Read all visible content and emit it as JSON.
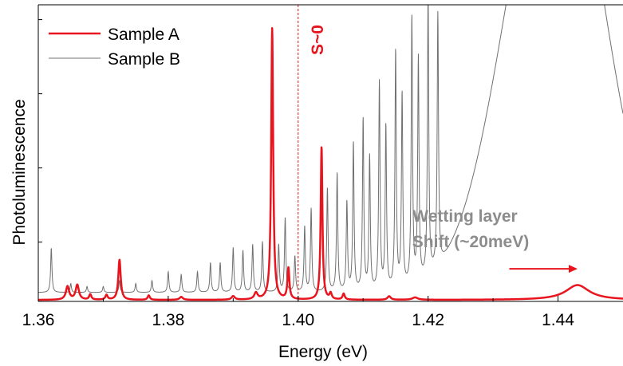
{
  "chart_data": {
    "type": "line",
    "xlabel": "Energy (eV)",
    "ylabel": "Photoluminescence",
    "xlim": [
      1.36,
      1.45
    ],
    "ylim": [
      0,
      1
    ],
    "x_ticks": [
      "1.36",
      "1.38",
      "1.40",
      "1.42",
      "1.44"
    ],
    "x_tick_values": [
      1.36,
      1.38,
      1.4,
      1.42,
      1.44
    ],
    "legend_position": "top-left",
    "colors": {
      "sample_a": "#e8141e",
      "sample_b": "#707070",
      "arrow": "#e8141e"
    },
    "series": [
      {
        "name": "Sample A",
        "color": "#e8141e",
        "baseline": 0.005,
        "peaks": [
          {
            "x": 1.3645,
            "y": 0.045,
            "w": 0.0003
          },
          {
            "x": 1.366,
            "y": 0.05,
            "w": 0.0003
          },
          {
            "x": 1.368,
            "y": 0.018,
            "w": 0.0002
          },
          {
            "x": 1.3705,
            "y": 0.016,
            "w": 0.0002
          },
          {
            "x": 1.3725,
            "y": 0.135,
            "w": 0.00022
          },
          {
            "x": 1.377,
            "y": 0.015,
            "w": 0.0002
          },
          {
            "x": 1.382,
            "y": 0.01,
            "w": 0.0003
          },
          {
            "x": 1.39,
            "y": 0.012,
            "w": 0.0003
          },
          {
            "x": 1.3935,
            "y": 0.022,
            "w": 0.0003
          },
          {
            "x": 1.396,
            "y": 0.915,
            "w": 0.00018
          },
          {
            "x": 1.3985,
            "y": 0.105,
            "w": 0.00018
          },
          {
            "x": 1.4036,
            "y": 0.515,
            "w": 0.00016
          },
          {
            "x": 1.405,
            "y": 0.02,
            "w": 0.0002
          },
          {
            "x": 1.407,
            "y": 0.02,
            "w": 0.0002
          },
          {
            "x": 1.414,
            "y": 0.012,
            "w": 0.0003
          },
          {
            "x": 1.418,
            "y": 0.008,
            "w": 0.0005
          },
          {
            "x": 1.443,
            "y": 0.05,
            "w": 0.0022
          }
        ]
      },
      {
        "name": "Sample B",
        "color": "#707070",
        "baseline": 0.03,
        "broad": [
          {
            "x": 1.4395,
            "y": 1.6,
            "w": 0.0075
          },
          {
            "x": 1.4425,
            "y": 0.06,
            "w": 0.003
          }
        ],
        "peaks": [
          {
            "x": 1.362,
            "y": 0.15,
            "w": 0.00012
          },
          {
            "x": 1.365,
            "y": 0.03,
            "w": 0.00012
          },
          {
            "x": 1.3675,
            "y": 0.02,
            "w": 0.00012
          },
          {
            "x": 1.37,
            "y": 0.02,
            "w": 0.00012
          },
          {
            "x": 1.3725,
            "y": 0.04,
            "w": 0.00012
          },
          {
            "x": 1.375,
            "y": 0.03,
            "w": 0.00012
          },
          {
            "x": 1.3775,
            "y": 0.04,
            "w": 0.00012
          },
          {
            "x": 1.38,
            "y": 0.07,
            "w": 0.00012
          },
          {
            "x": 1.382,
            "y": 0.06,
            "w": 0.00012
          },
          {
            "x": 1.3845,
            "y": 0.07,
            "w": 0.00012
          },
          {
            "x": 1.3865,
            "y": 0.1,
            "w": 0.00012
          },
          {
            "x": 1.388,
            "y": 0.1,
            "w": 0.00012
          },
          {
            "x": 1.39,
            "y": 0.15,
            "w": 0.00012
          },
          {
            "x": 1.3915,
            "y": 0.14,
            "w": 0.00012
          },
          {
            "x": 1.393,
            "y": 0.16,
            "w": 0.00012
          },
          {
            "x": 1.3945,
            "y": 0.17,
            "w": 0.00012
          },
          {
            "x": 1.397,
            "y": 0.16,
            "w": 0.00012
          },
          {
            "x": 1.398,
            "y": 0.25,
            "w": 0.00012
          },
          {
            "x": 1.3995,
            "y": 0.12,
            "w": 0.00012
          },
          {
            "x": 1.401,
            "y": 0.22,
            "w": 0.00012
          },
          {
            "x": 1.402,
            "y": 0.28,
            "w": 0.00012
          },
          {
            "x": 1.4045,
            "y": 0.35,
            "w": 0.00012
          },
          {
            "x": 1.406,
            "y": 0.4,
            "w": 0.00012
          },
          {
            "x": 1.4075,
            "y": 0.3,
            "w": 0.00012
          },
          {
            "x": 1.4085,
            "y": 0.5,
            "w": 0.00012
          },
          {
            "x": 1.41,
            "y": 0.58,
            "w": 0.00012
          },
          {
            "x": 1.411,
            "y": 0.45,
            "w": 0.00012
          },
          {
            "x": 1.4125,
            "y": 0.7,
            "w": 0.00012
          },
          {
            "x": 1.4135,
            "y": 0.55,
            "w": 0.00012
          },
          {
            "x": 1.415,
            "y": 0.8,
            "w": 0.00012
          },
          {
            "x": 1.416,
            "y": 0.65,
            "w": 0.00012
          },
          {
            "x": 1.4175,
            "y": 0.9,
            "w": 0.00012
          },
          {
            "x": 1.4185,
            "y": 0.75,
            "w": 0.00012
          },
          {
            "x": 1.42,
            "y": 0.95,
            "w": 0.00012
          },
          {
            "x": 1.4215,
            "y": 0.85,
            "w": 0.00012
          }
        ]
      }
    ],
    "vline": {
      "x": 1.4,
      "label": "S~0",
      "color": "#e8141e"
    },
    "annotation": {
      "lines": [
        "Wetting layer",
        "Shift (~20meV)"
      ],
      "arrow_from": 1.4325,
      "arrow_to": 1.443,
      "arrow_y": 0.11,
      "color": "#8c8c8c"
    }
  }
}
